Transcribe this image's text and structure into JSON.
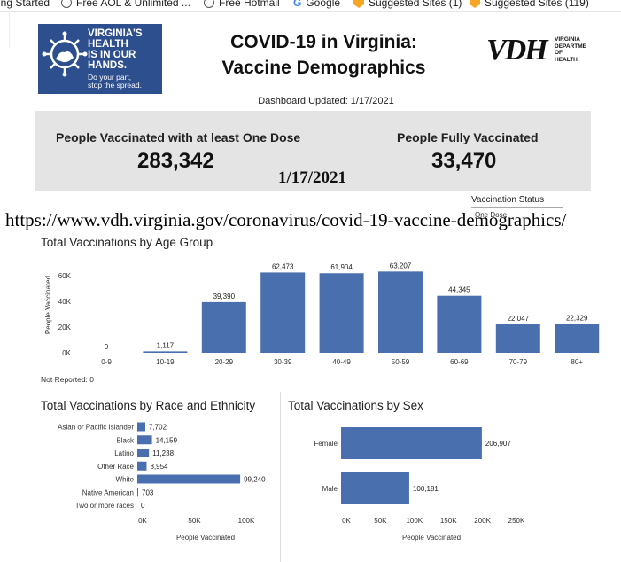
{
  "bookmarks": [
    {
      "label": "ing Started",
      "icon": "none"
    },
    {
      "label": "Free AOL & Unlimited ...",
      "icon": "globe-icon"
    },
    {
      "label": "Free Hotmail",
      "icon": "globe-icon"
    },
    {
      "label": "Google",
      "icon": "google-icon"
    },
    {
      "label": "Suggested Sites (1)",
      "icon": "suggested-sites-icon"
    },
    {
      "label": "Suggested Sites (119)",
      "icon": "suggested-sites-icon"
    }
  ],
  "logo": {
    "lines": [
      "VIRGINIA'S",
      "HEALTH",
      "IS IN OUR",
      "HANDS."
    ],
    "tagline": [
      "Do your part,",
      "stop the spread."
    ]
  },
  "header": {
    "title_line1": "COVID-19 in Virginia:",
    "title_line2": "Vaccine Demographics",
    "vdh_mark": "VDH",
    "vdh_sub": [
      "VIRGINIA",
      "DEPARTME",
      "OF HEALTH"
    ],
    "updated": "Dashboard Updated: 1/17/2021"
  },
  "kpis": {
    "one_dose_label": "People Vaccinated with at least One Dose",
    "one_dose_value": "283,342",
    "fully_label": "People Fully Vaccinated",
    "fully_value": "33,470"
  },
  "overlay": {
    "date_stamp": "1/17/2021",
    "url": "https://www.vdh.virginia.gov/coronavirus/covid-19-vaccine-demographics/"
  },
  "filter": {
    "label": "Vaccination Status",
    "value": "One Dose"
  },
  "colors": {
    "bar": "#4a6fae",
    "logo_bg": "#2d4f8e",
    "kpi_bg": "#e4e4e4"
  },
  "chart_data": [
    {
      "type": "bar",
      "title": "Total Vaccinations by Age Group",
      "ylabel": "People Vaccinated",
      "categories": [
        "0-9",
        "10-19",
        "20-29",
        "30-39",
        "40-49",
        "50-59",
        "60-69",
        "70-79",
        "80+"
      ],
      "values": [
        0,
        1117,
        39390,
        62473,
        61904,
        63207,
        44345,
        22047,
        22329
      ],
      "value_labels": [
        "0",
        "1,117",
        "39,390",
        "62,473",
        "61,904",
        "63,207",
        "44,345",
        "22,047",
        "22,329"
      ],
      "yticks": [
        "0K",
        "20K",
        "40K",
        "60K"
      ],
      "ylim": [
        0,
        65000
      ],
      "footnote": "Not Reported: 0"
    },
    {
      "type": "bar",
      "orientation": "horizontal",
      "title": "Total Vaccinations by Race and Ethnicity",
      "xlabel": "People Vaccinated",
      "categories": [
        "Asian or Pacific Islander",
        "Black",
        "Latino",
        "Other Race",
        "White",
        "Native American",
        "Two or more races"
      ],
      "values": [
        7702,
        14159,
        11238,
        8954,
        99240,
        703,
        0
      ],
      "value_labels": [
        "7,702",
        "14,159",
        "11,238",
        "8,954",
        "99,240",
        "703",
        "0"
      ],
      "xticks": [
        "0K",
        "50K",
        "100K"
      ],
      "xlim": [
        0,
        100000
      ]
    },
    {
      "type": "bar",
      "orientation": "horizontal",
      "title": "Total Vaccinations by Sex",
      "xlabel": "People Vaccinated",
      "categories": [
        "Female",
        "Male"
      ],
      "values": [
        206907,
        100181
      ],
      "value_labels": [
        "206,907",
        "100,181"
      ],
      "xticks": [
        "0K",
        "50K",
        "100K",
        "150K",
        "200K",
        "250K"
      ],
      "xlim": [
        0,
        250000
      ]
    }
  ]
}
